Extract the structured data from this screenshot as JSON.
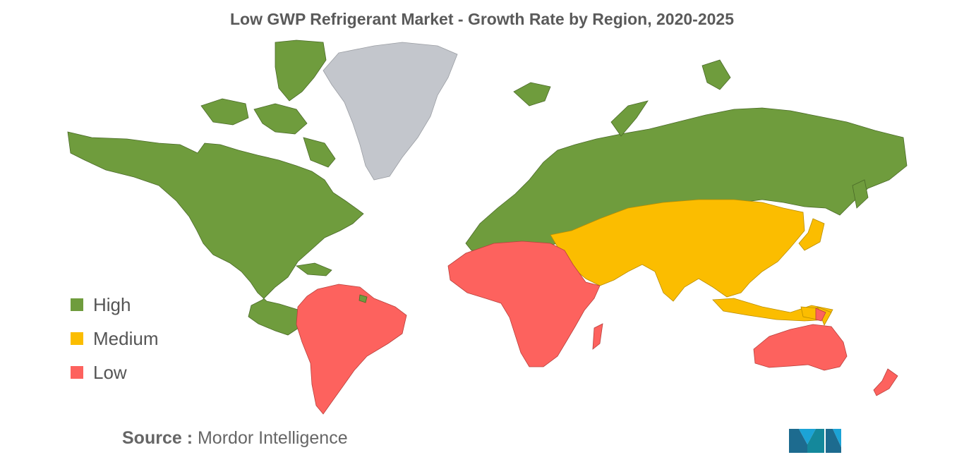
{
  "title": "Low GWP Refrigerant Market - Growth Rate by Region, 2020-2025",
  "legend": [
    {
      "label": "High",
      "color": "#6f9c3d"
    },
    {
      "label": "Medium",
      "color": "#fbbd00"
    },
    {
      "label": "Low",
      "color": "#fd625e"
    }
  ],
  "no_data_color": "#c3c6cc",
  "regions": {
    "north_america": "High",
    "europe": "High",
    "russia": "High",
    "south_america": "Low",
    "africa": "Low",
    "australia_oceania": "Low",
    "middle_east_asia": "Medium",
    "greenland": "No data"
  },
  "source": {
    "key": "Source :",
    "value": "Mordor Intelligence"
  },
  "logo": {
    "name": "mordor-intelligence-logo",
    "accent": "#1ba3d6"
  }
}
